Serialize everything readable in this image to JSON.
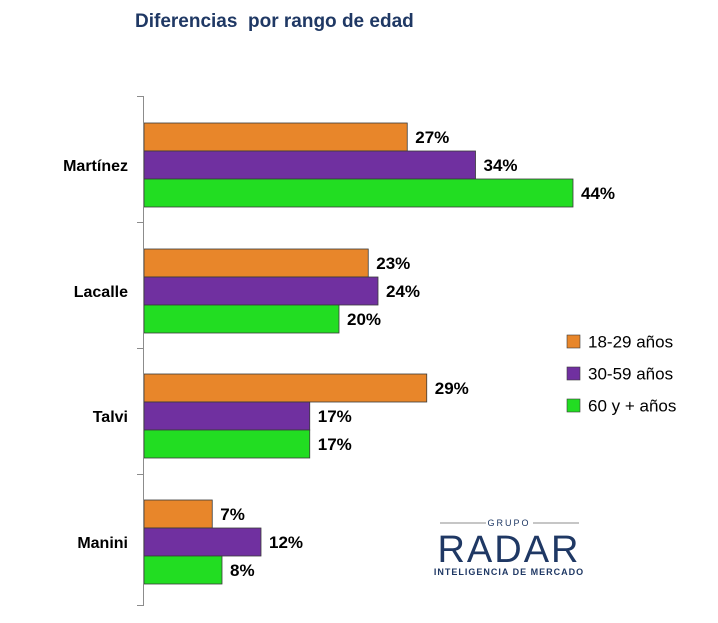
{
  "chart_data": {
    "type": "bar",
    "orientation": "horizontal",
    "title": "Diferencias  por rango de edad",
    "categories": [
      "Martínez",
      "Lacalle",
      "Talvi",
      "Manini"
    ],
    "series": [
      {
        "name": "18-29 años",
        "color": "#e8862a",
        "values": [
          27,
          23,
          29,
          7
        ]
      },
      {
        "name": "30-59 años",
        "color": "#7030a0",
        "values": [
          34,
          24,
          17,
          12
        ]
      },
      {
        "name": "60 y + años",
        "color": "#22dd22",
        "values": [
          44,
          20,
          17,
          8
        ]
      }
    ],
    "value_suffix": "%",
    "xlabel": "",
    "ylabel": "",
    "xlim": [
      0,
      50
    ],
    "grid": false,
    "legend_position": "right"
  },
  "logo": {
    "top": "GRUPO",
    "name": "RADAR",
    "subtitle": "INTELIGENCIA DE MERCADO"
  }
}
